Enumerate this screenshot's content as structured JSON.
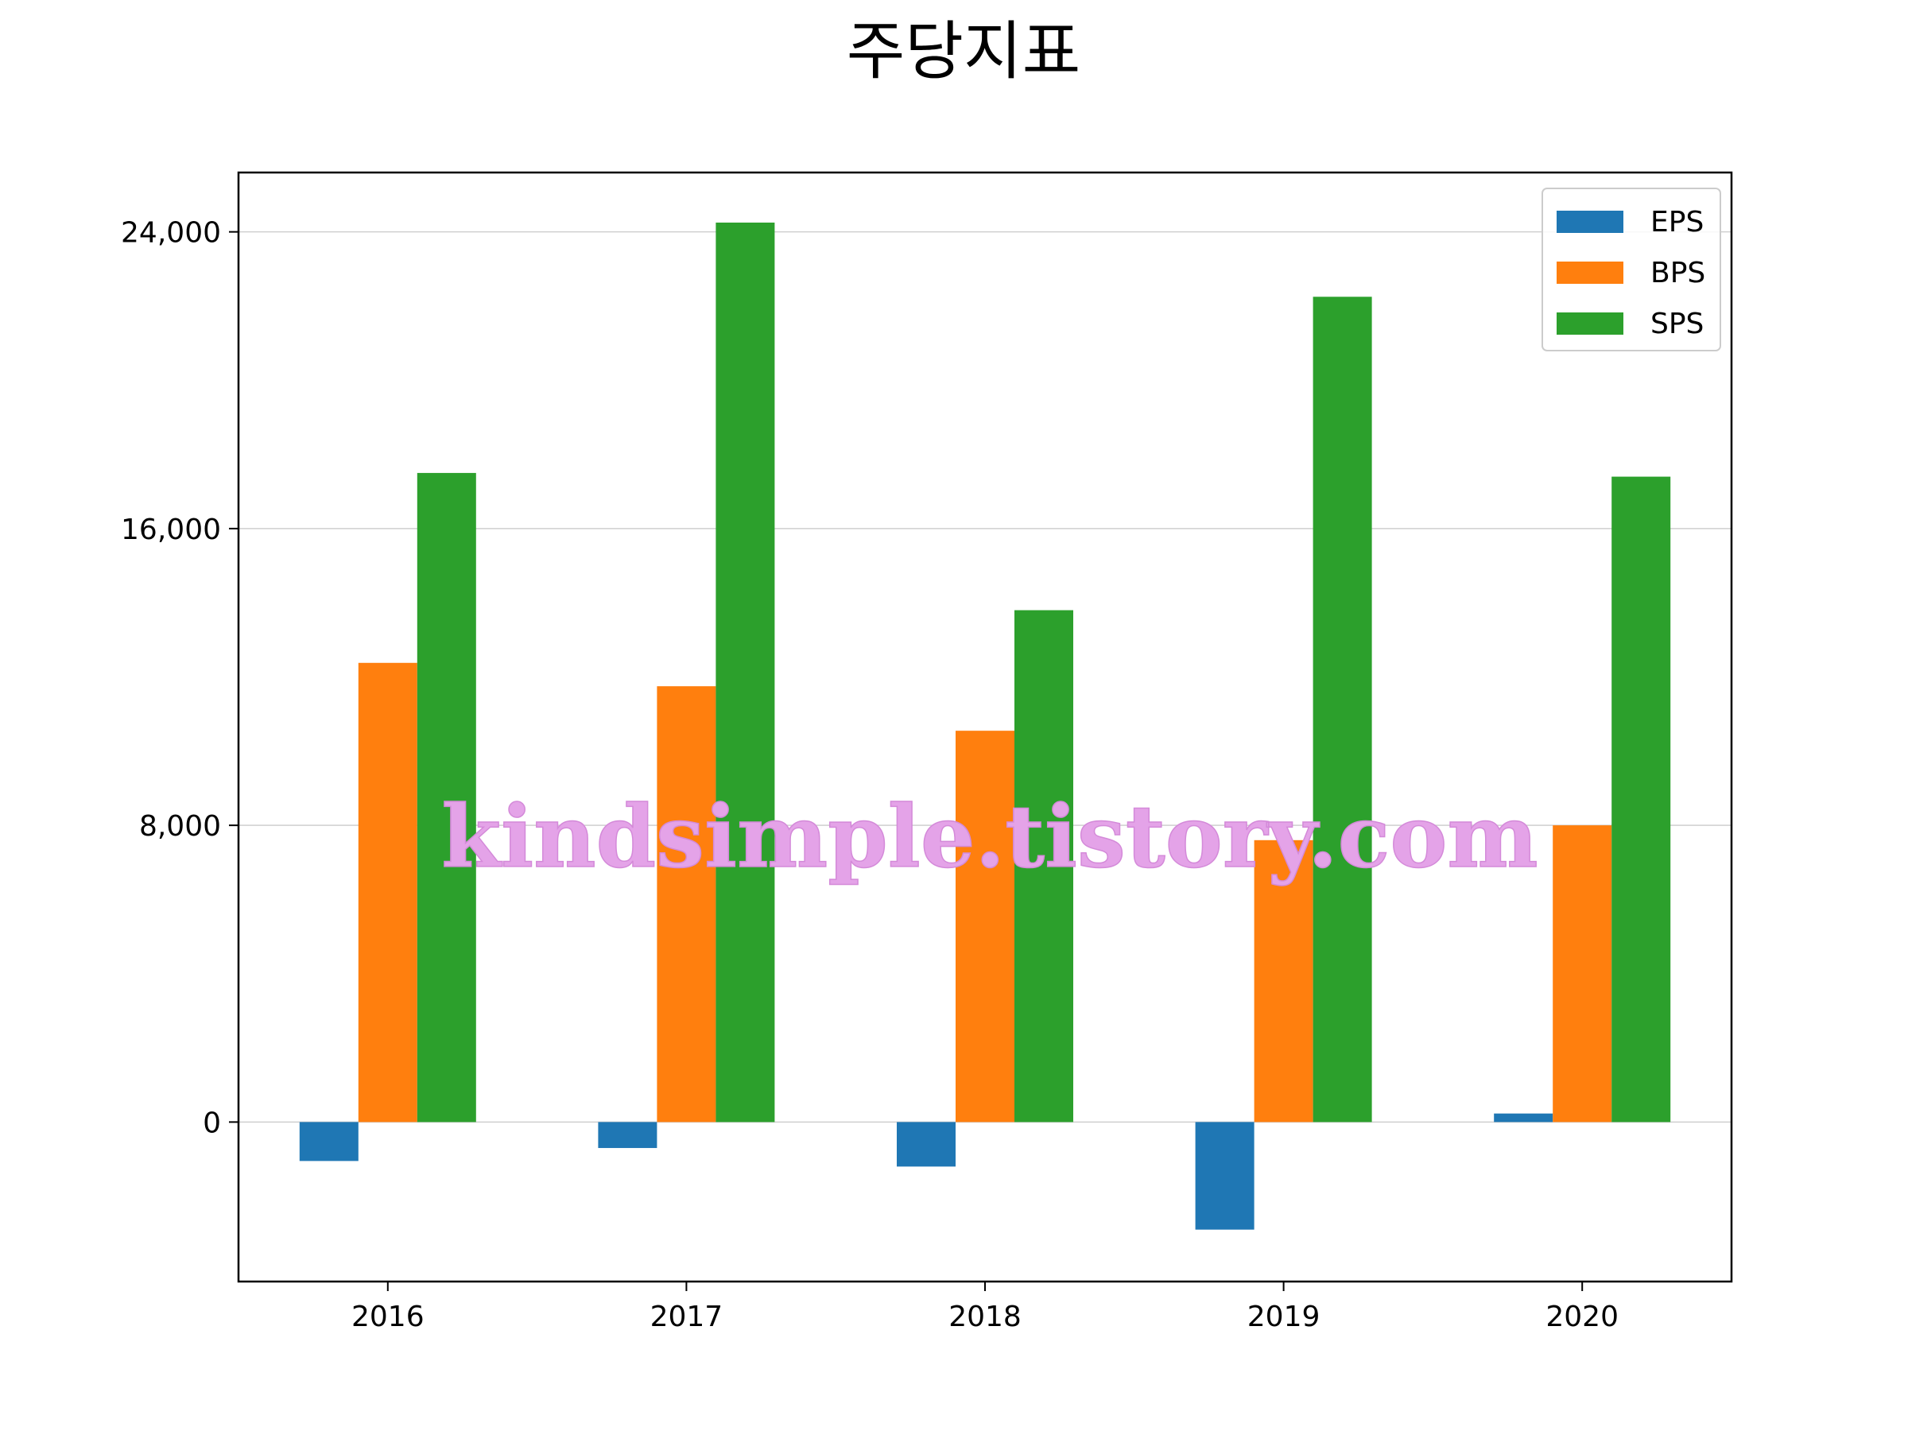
{
  "chart_data": {
    "type": "bar",
    "title": "주당지표",
    "xlabel": "",
    "ylabel": "",
    "categories": [
      "2016",
      "2017",
      "2018",
      "2019",
      "2020"
    ],
    "series": [
      {
        "name": "EPS",
        "color": "#1f77b4",
        "values": [
          -1050,
          -700,
          -1200,
          -2900,
          230
        ]
      },
      {
        "name": "BPS",
        "color": "#ff7f0e",
        "values": [
          12380,
          11750,
          10550,
          7600,
          8000
        ]
      },
      {
        "name": "SPS",
        "color": "#2ca02c",
        "values": [
          17500,
          24250,
          13800,
          22250,
          17400
        ]
      }
    ],
    "ylim": [
      -4300,
      25600
    ],
    "yticks": [
      0,
      8000,
      16000,
      24000
    ],
    "ytick_labels": [
      "0",
      "8,000",
      "16,000",
      "24,000"
    ],
    "grid": "y",
    "legend_position": "top-right"
  },
  "watermark": "kindsimple.tistory.com"
}
